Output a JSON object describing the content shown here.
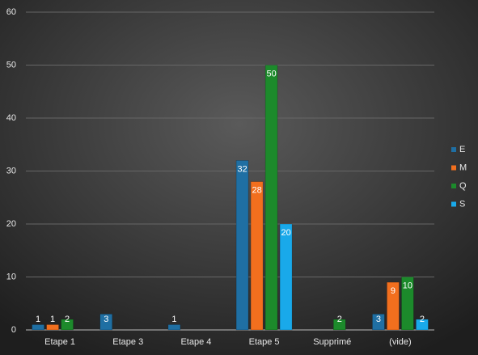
{
  "chart_data": {
    "type": "bar",
    "categories": [
      "Etape 1",
      "Etape 3",
      "Etape 4",
      "Etape 5",
      "Supprimé",
      "(vide)"
    ],
    "series": [
      {
        "name": "E",
        "color": "#1f6fa3",
        "values": [
          1,
          3,
          1,
          32,
          null,
          3
        ]
      },
      {
        "name": "M",
        "color": "#f26f1e",
        "values": [
          1,
          null,
          null,
          28,
          null,
          9
        ]
      },
      {
        "name": "Q",
        "color": "#1c8a2b",
        "values": [
          2,
          null,
          null,
          50,
          2,
          10
        ]
      },
      {
        "name": "S",
        "color": "#19a9ea",
        "values": [
          null,
          null,
          null,
          20,
          null,
          2
        ]
      }
    ],
    "ylim": [
      0,
      60
    ],
    "yticks": [
      0,
      10,
      20,
      30,
      40,
      50,
      60
    ],
    "grid": true,
    "legend": "right"
  }
}
